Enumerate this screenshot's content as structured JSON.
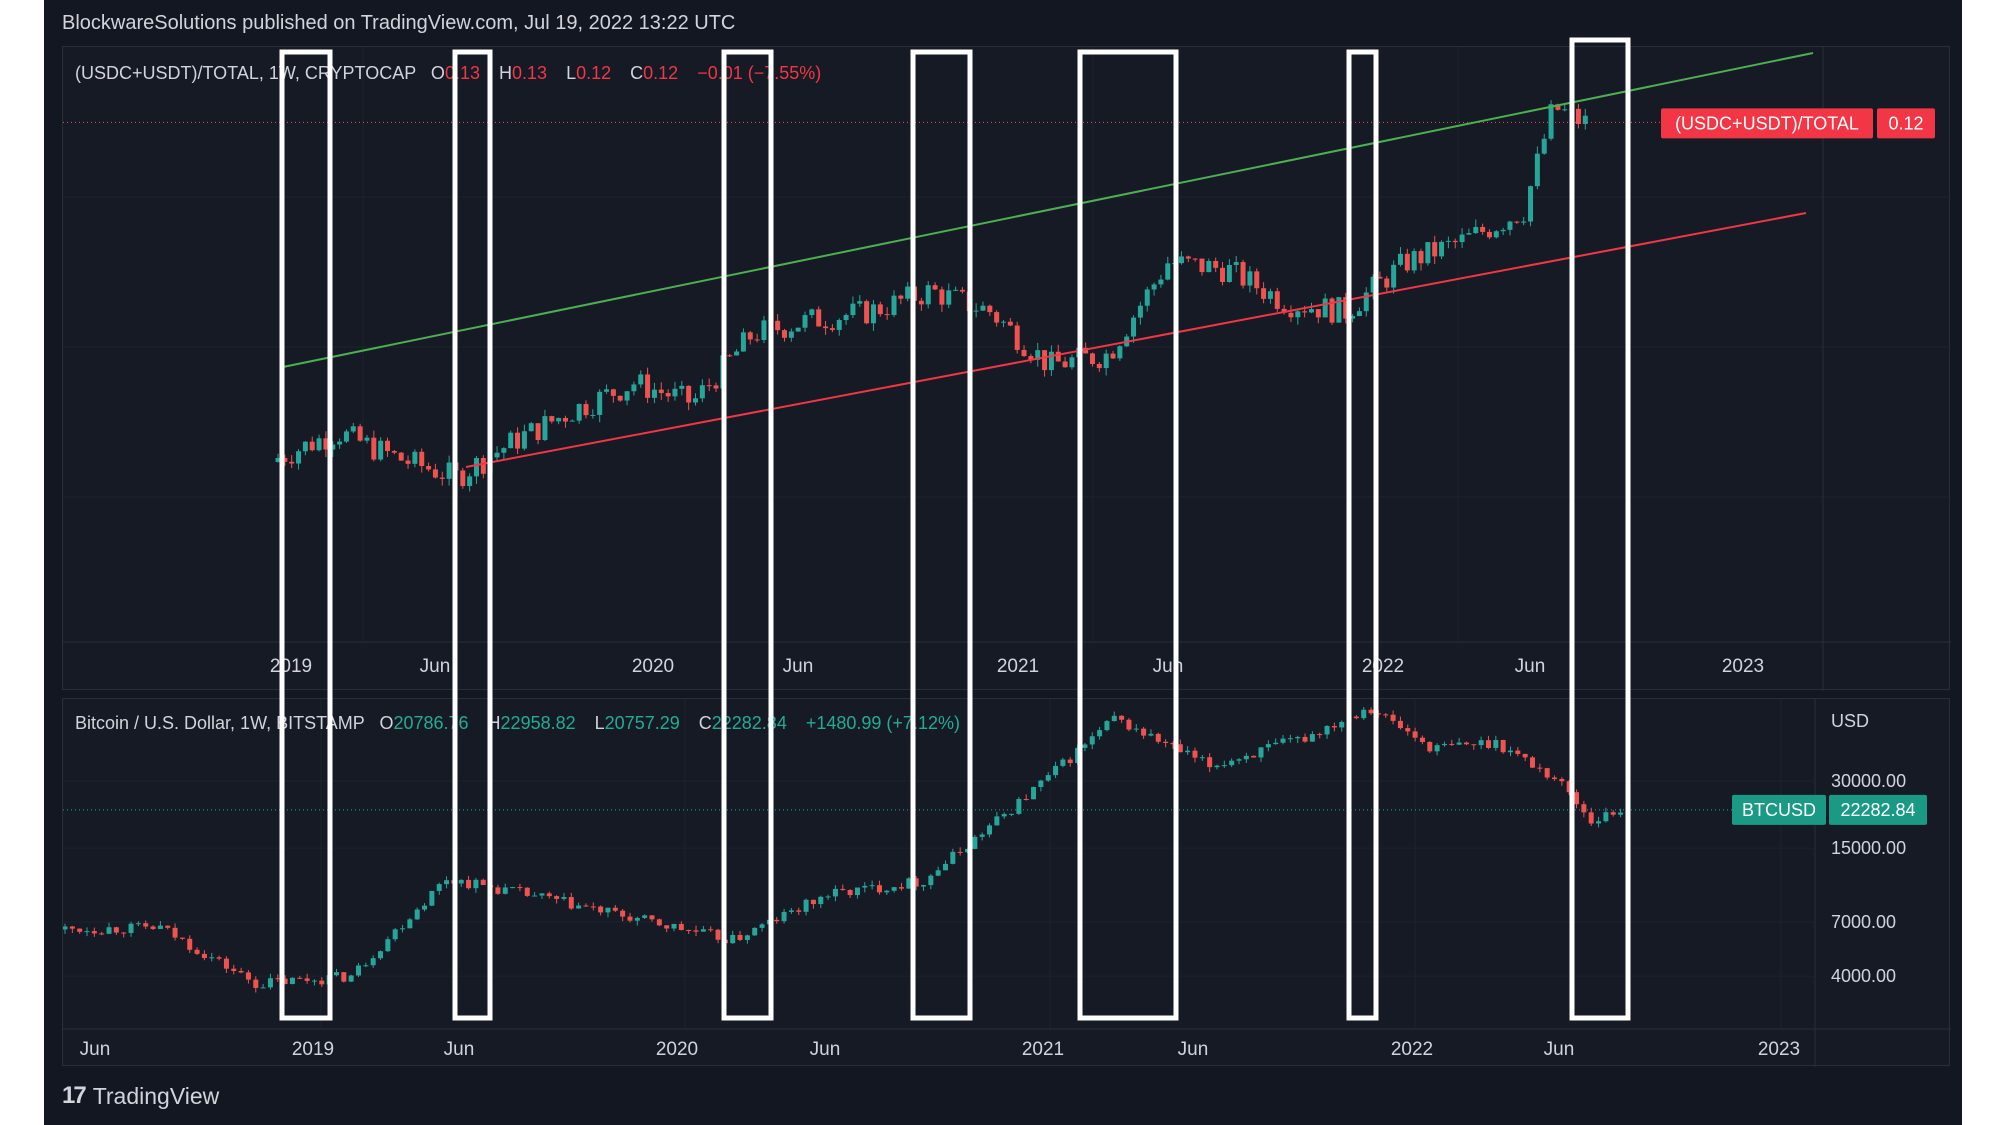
{
  "header": {
    "publisher": "BlockwareSolutions published on TradingView.com, Jul 19, 2022 13:22 UTC"
  },
  "footer": {
    "brand_logo": "17",
    "brand": "TradingView"
  },
  "top_panel": {
    "legend": {
      "symbol": "(USDC+USDT)/TOTAL, 1W, CRYPTOCAP",
      "o_label": "O",
      "open": "0.13",
      "h_label": "H",
      "high": "0.13",
      "l_label": "L",
      "low": "0.12",
      "c_label": "C",
      "close": "0.12",
      "change": "−0.01 (−7.55%)"
    },
    "tag": {
      "name": "(USDC+USDT)/TOTAL",
      "value": "0.12"
    },
    "x_axis": [
      "2019",
      "Jun",
      "2020",
      "Jun",
      "2021",
      "Jun",
      "2022",
      "Jun",
      "2023"
    ]
  },
  "bottom_panel": {
    "legend": {
      "symbol": "Bitcoin / U.S. Dollar, 1W, BITSTAMP",
      "o_label": "O",
      "open": "20786.76",
      "h_label": "H",
      "high": "22958.82",
      "l_label": "L",
      "low": "20757.29",
      "c_label": "C",
      "close": "22282.84",
      "change": "+1480.99 (+7.12%)"
    },
    "currency": "USD",
    "price_axis": [
      "30000.00",
      "15000.00",
      "7000.00",
      "4000.00"
    ],
    "tag": {
      "name": "BTCUSD",
      "value": "22282.84"
    },
    "x_axis": [
      "Jun",
      "2019",
      "Jun",
      "2020",
      "Jun",
      "2021",
      "Jun",
      "2022",
      "Jun",
      "2023"
    ]
  },
  "colors": {
    "background": "#131722",
    "up": "#26a69a",
    "down": "#ef5350",
    "channel_top": "#4caf50",
    "channel_bottom": "#f23645",
    "highlight_box": "#ffffff"
  },
  "chart_data": [
    {
      "type": "candlestick",
      "title": "(USDC+USDT)/TOTAL, 1W, CRYPTOCAP",
      "x": [
        "2018-11",
        "2019-01",
        "2019-03",
        "2019-05",
        "2019-07",
        "2019-09",
        "2019-11",
        "2020-01",
        "2020-03",
        "2020-05",
        "2020-07",
        "2020-09",
        "2020-11",
        "2021-01",
        "2021-03",
        "2021-05",
        "2021-07",
        "2021-09",
        "2021-11",
        "2022-01",
        "2022-03",
        "2022-05",
        "2022-06",
        "2022-07"
      ],
      "values": [
        0.021,
        0.024,
        0.021,
        0.019,
        0.023,
        0.027,
        0.031,
        0.028,
        0.04,
        0.043,
        0.045,
        0.05,
        0.045,
        0.034,
        0.036,
        0.058,
        0.056,
        0.047,
        0.045,
        0.058,
        0.065,
        0.076,
        0.13,
        0.12
      ],
      "last": 0.12
    },
    {
      "type": "candlestick",
      "title": "Bitcoin / U.S. Dollar, 1W, BITSTAMP",
      "x": [
        "2018-06",
        "2018-09",
        "2018-12",
        "2019-03",
        "2019-06",
        "2019-09",
        "2019-12",
        "2020-03",
        "2020-06",
        "2020-09",
        "2020-12",
        "2021-03",
        "2021-06",
        "2021-09",
        "2021-11",
        "2022-01",
        "2022-03",
        "2022-05",
        "2022-06",
        "2022-07"
      ],
      "values": [
        6500,
        6600,
        3700,
        4000,
        11000,
        9000,
        7200,
        5800,
        9300,
        10700,
        24000,
        57000,
        35000,
        47000,
        65000,
        42000,
        45000,
        30000,
        20000,
        22282.84
      ],
      "ylim": [
        3000,
        70000
      ],
      "yscale": "log"
    }
  ]
}
